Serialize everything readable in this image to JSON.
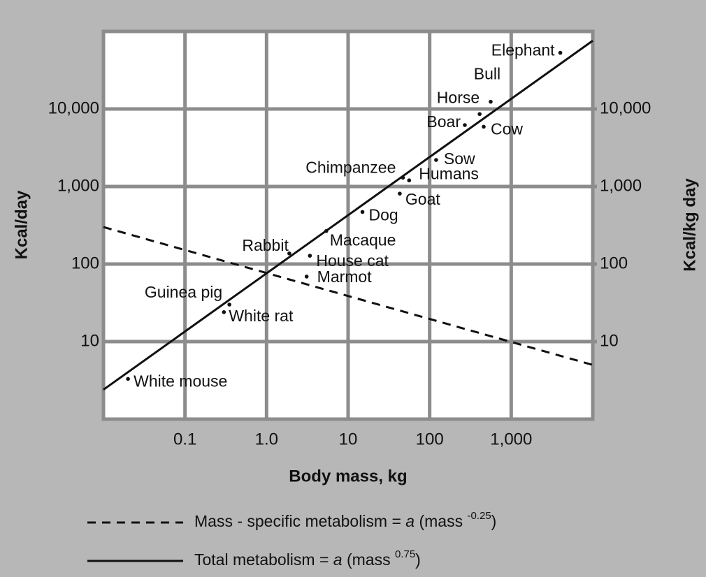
{
  "chart_data": {
    "type": "scatter",
    "x_label": "Body mass, kg",
    "y_label": "Kcal/day",
    "y2_label": "Kcal/kg day",
    "xscale": "log",
    "yscale": "log",
    "xlim": [
      0.01,
      10000
    ],
    "ylim": [
      1,
      100000
    ],
    "y2lim": [
      1,
      100000
    ],
    "xticks": [
      0.1,
      {
        "value": 1,
        "label": "1.0"
      },
      10,
      100,
      {
        "value": 1000,
        "label": "1,000"
      }
    ],
    "yticks": [
      10,
      100,
      {
        "value": 1000,
        "label": "1,000"
      },
      {
        "value": 10000,
        "label": "10,000"
      }
    ],
    "y2ticks": [
      10,
      100,
      {
        "value": 1000,
        "label": "1,000"
      },
      {
        "value": 10000,
        "label": "10,000"
      }
    ],
    "grid": true,
    "point_color": "#111111",
    "labels": [
      "White mouse",
      "White rat",
      "Guinea pig",
      "Rabbit",
      "House cat",
      "Marmot",
      "Macaque",
      "Dog",
      "Chimpanzee",
      "Humans",
      "Goat",
      "Sow",
      "Boar",
      "Cow",
      "Horse",
      "Bull",
      "Elephant"
    ],
    "x": [
      0.02,
      0.3,
      0.35,
      1.9,
      3.4,
      3.1,
      5.4,
      15,
      47,
      56,
      43,
      120,
      270,
      460,
      410,
      560,
      4000
    ],
    "values": [
      3.3,
      24,
      30,
      137,
      128,
      69,
      267,
      470,
      1300,
      1200,
      810,
      2200,
      6200,
      5900,
      8600,
      12400,
      53000
    ],
    "lines": [
      {
        "name": "Mass - specific metabolism = a (mass -0.25)",
        "style": "dashed",
        "axis": "y2",
        "color": "#111111",
        "x": [
          0.01,
          10000
        ],
        "values": [
          300,
          5
        ]
      },
      {
        "name": "Total metabolism = a (mass 0.75)",
        "style": "solid",
        "color": "#111111",
        "x": [
          0.01,
          10000
        ],
        "values": [
          2.4,
          76000
        ]
      }
    ]
  }
}
